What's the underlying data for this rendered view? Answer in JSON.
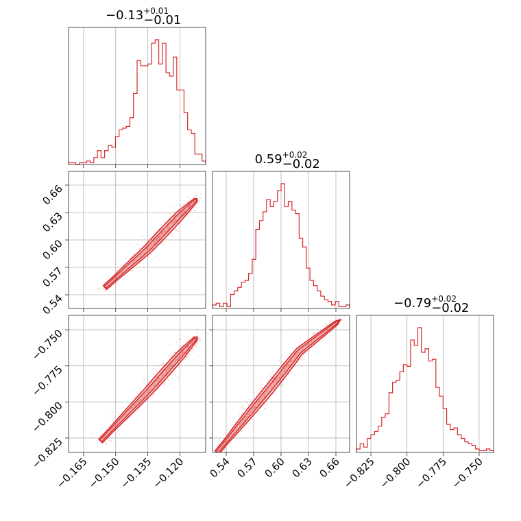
{
  "chart_data": {
    "type": "corner",
    "color": "#d62728",
    "params": [
      {
        "range": [
          -0.172,
          -0.108
        ],
        "ticks": [
          -0.165,
          -0.15,
          -0.135,
          -0.12
        ],
        "tick_labels": [
          "−0.165",
          "−0.150",
          "−0.135",
          "−0.120"
        ],
        "title_main": "−0.13",
        "title_plus": "+0.01",
        "title_minus": "−0.01"
      },
      {
        "range": [
          0.525,
          0.675
        ],
        "ticks": [
          0.54,
          0.57,
          0.6,
          0.63,
          0.66
        ],
        "tick_labels": [
          "0.54",
          "0.57",
          "0.60",
          "0.63",
          "0.66"
        ],
        "title_main": "0.59",
        "title_plus": "+0.02",
        "title_minus": "−0.02"
      },
      {
        "range": [
          -0.835,
          -0.74
        ],
        "ticks": [
          -0.825,
          -0.8,
          -0.775,
          -0.75
        ],
        "tick_labels": [
          "−0.825",
          "−0.800",
          "−0.775",
          "−0.750"
        ],
        "title_main": "−0.79",
        "title_plus": "+0.02",
        "title_minus": "−0.02"
      }
    ],
    "histograms": [
      {
        "param": 0,
        "counts": [
          1,
          1,
          0,
          1,
          1,
          2,
          1,
          4,
          8,
          4,
          8,
          11,
          10,
          16,
          20,
          21,
          22,
          27,
          41,
          60,
          57,
          57,
          58,
          70,
          72,
          58,
          70,
          53,
          51,
          62,
          43,
          43,
          30,
          20,
          18,
          6,
          6,
          2
        ]
      },
      {
        "param": 1,
        "counts": [
          2,
          3,
          1,
          3,
          1,
          8,
          10,
          12,
          15,
          16,
          20,
          28,
          45,
          50,
          55,
          62,
          58,
          61,
          67,
          71,
          58,
          61,
          56,
          54,
          40,
          35,
          23,
          16,
          13,
          10,
          7,
          5,
          4,
          2,
          4,
          1,
          1,
          2
        ]
      },
      {
        "param": 2,
        "counts": [
          2,
          5,
          3,
          8,
          10,
          12,
          15,
          20,
          22,
          34,
          40,
          41,
          46,
          50,
          49,
          64,
          61,
          71,
          57,
          59,
          52,
          53,
          37,
          32,
          25,
          16,
          13,
          14,
          10,
          8,
          6,
          5,
          4,
          2,
          1,
          1,
          2,
          1
        ]
      }
    ],
    "correlations": [
      {
        "x_param": 0,
        "y_param": 1,
        "line": [
          [
            -0.155,
            0.548
          ],
          [
            -0.135,
            0.59
          ],
          [
            -0.12,
            0.627
          ],
          [
            -0.112,
            0.645
          ]
        ],
        "width": 0.006
      },
      {
        "x_param": 0,
        "y_param": 2,
        "line": [
          [
            -0.157,
            -0.827
          ],
          [
            -0.135,
            -0.793
          ],
          [
            -0.12,
            -0.768
          ],
          [
            -0.112,
            -0.755
          ]
        ],
        "width": 0.005
      },
      {
        "x_param": 1,
        "y_param": 2,
        "line": [
          [
            0.53,
            -0.835
          ],
          [
            0.56,
            -0.812
          ],
          [
            0.59,
            -0.789
          ],
          [
            0.62,
            -0.765
          ],
          [
            0.665,
            -0.743
          ]
        ],
        "width": 0.007
      }
    ]
  }
}
